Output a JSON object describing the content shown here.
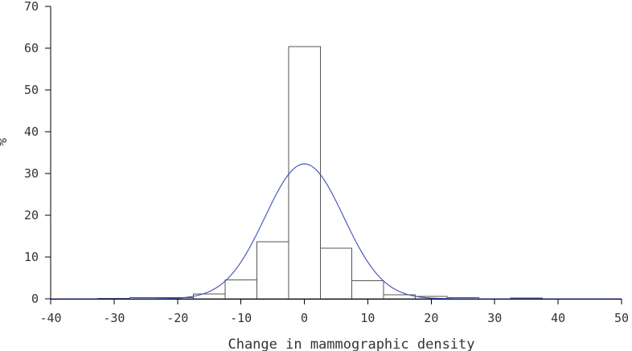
{
  "chart_data": {
    "type": "bar",
    "title": "",
    "xlabel": "Change in mammographic density",
    "ylabel": "%",
    "xlim": [
      -40,
      50
    ],
    "ylim": [
      0,
      70
    ],
    "x_ticks": [
      -40,
      -30,
      -20,
      -10,
      0,
      10,
      20,
      30,
      40,
      50
    ],
    "y_ticks": [
      0,
      10,
      20,
      30,
      40,
      50,
      60,
      70
    ],
    "bin_width": 5,
    "bin_centers": [
      -30,
      -25,
      -20,
      -15,
      -10,
      -5,
      0,
      5,
      10,
      15,
      20,
      25,
      35
    ],
    "values": [
      0.1,
      0.3,
      0.3,
      1.2,
      4.5,
      13.7,
      60.4,
      12.1,
      4.3,
      1.0,
      0.6,
      0.3,
      0.2
    ],
    "normal_curve": {
      "mean": 0,
      "sd": 6.2,
      "peak": 32.3
    },
    "grid": false,
    "colors": {
      "bars": "#ffffff",
      "bar_edge": "#555555",
      "curve": "#3b4fb8"
    }
  }
}
